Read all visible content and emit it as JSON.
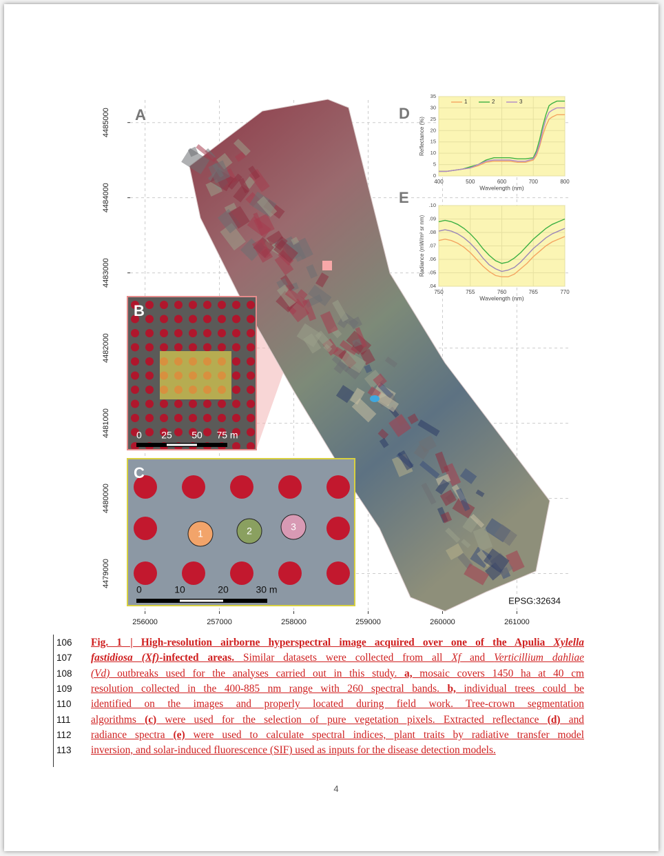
{
  "figure": {
    "panel_labels": [
      "A",
      "B",
      "C",
      "D",
      "E"
    ],
    "map": {
      "xlim": [
        255800,
        261700
      ],
      "ylim": [
        4478500,
        4485300
      ],
      "xticks": [
        256000,
        257000,
        258000,
        259000,
        260000,
        261000
      ],
      "yticks": [
        4479000,
        4480000,
        4481000,
        4482000,
        4483000,
        4484000,
        4485000
      ],
      "grid": true,
      "crs": "EPSG:32634"
    },
    "inset_b": {
      "scale_labels": [
        "0",
        "25",
        "50",
        "75 m"
      ]
    },
    "inset_c": {
      "scale_labels": [
        "0",
        "10",
        "20",
        "30 m"
      ],
      "crown_labels": [
        "1",
        "2",
        "3"
      ]
    }
  },
  "chart_data": [
    {
      "type": "line",
      "panel": "D",
      "xlabel": "Wavelength (nm)",
      "ylabel": "Reflectance (%)",
      "x": [
        400,
        425,
        450,
        475,
        500,
        525,
        550,
        575,
        600,
        625,
        650,
        675,
        700,
        710,
        720,
        730,
        740,
        750,
        760,
        775,
        800
      ],
      "series": [
        {
          "name": "1",
          "color": "#f4a460",
          "values": [
            2,
            2,
            2.5,
            3,
            3.5,
            4.5,
            6,
            6.5,
            6.5,
            6.5,
            6,
            6,
            7,
            9,
            13,
            18,
            22,
            25,
            26,
            27,
            27
          ]
        },
        {
          "name": "2",
          "color": "#3cb043",
          "values": [
            2,
            2,
            2.5,
            3,
            4,
            5,
            7,
            8,
            8,
            8,
            7.5,
            7.5,
            8,
            11,
            16,
            22,
            27,
            31,
            32,
            33,
            33
          ]
        },
        {
          "name": "3",
          "color": "#b088c8",
          "values": [
            2,
            2,
            2.5,
            3,
            3.5,
            5,
            6.5,
            7,
            7,
            7,
            6.5,
            6.5,
            7.5,
            10,
            14,
            20,
            25,
            28,
            29,
            30,
            30
          ]
        }
      ],
      "xlim": [
        400,
        800
      ],
      "ylim": [
        0,
        35
      ],
      "xticks": [
        400,
        500,
        600,
        700,
        800
      ],
      "yticks": [
        0,
        5,
        10,
        15,
        20,
        25,
        30,
        35
      ],
      "grid": true,
      "legend": "upper center",
      "background": "#fbf5b4"
    },
    {
      "type": "line",
      "panel": "E",
      "xlabel": "Wavelength (nm)",
      "ylabel": "Radiance (mW/m² sr nm)",
      "x": [
        750,
        751,
        752,
        753,
        754,
        755,
        756,
        757,
        758,
        759,
        760,
        761,
        762,
        763,
        764,
        765,
        766,
        767,
        768,
        769,
        770
      ],
      "series": [
        {
          "color": "#3cb043",
          "values": [
            0.088,
            0.089,
            0.088,
            0.086,
            0.083,
            0.079,
            0.074,
            0.068,
            0.063,
            0.059,
            0.057,
            0.058,
            0.061,
            0.065,
            0.07,
            0.075,
            0.079,
            0.083,
            0.086,
            0.088,
            0.09
          ]
        },
        {
          "color": "#9a86b8",
          "values": [
            0.081,
            0.082,
            0.081,
            0.079,
            0.076,
            0.072,
            0.067,
            0.061,
            0.056,
            0.053,
            0.051,
            0.052,
            0.054,
            0.058,
            0.063,
            0.068,
            0.072,
            0.076,
            0.079,
            0.081,
            0.083
          ]
        },
        {
          "color": "#f4a460",
          "values": [
            0.074,
            0.075,
            0.074,
            0.072,
            0.069,
            0.065,
            0.06,
            0.055,
            0.051,
            0.048,
            0.047,
            0.047,
            0.049,
            0.053,
            0.057,
            0.062,
            0.066,
            0.07,
            0.073,
            0.075,
            0.077
          ]
        }
      ],
      "xlim": [
        750,
        770
      ],
      "ylim": [
        0.04,
        0.1
      ],
      "xticks": [
        750,
        755,
        760,
        765,
        770
      ],
      "yticks": [
        {
          "value": 0.04,
          "label": ".04"
        },
        {
          "value": 0.05,
          "label": ".05"
        },
        {
          "value": 0.06,
          "label": ".06"
        },
        {
          "value": 0.07,
          "label": ".07"
        },
        {
          "value": 0.08,
          "label": ".08"
        },
        {
          "value": 0.09,
          "label": ".09"
        },
        {
          "value": 0.1,
          "label": ".10"
        }
      ],
      "grid": true,
      "background": "#fbf5b4"
    }
  ],
  "caption": {
    "line_numbers": [
      106,
      107,
      108,
      109,
      110,
      111,
      112,
      113
    ],
    "lines": [
      [
        {
          "text": "Fig. 1 | High-resolution airborne hyperspectral image acquired over one of the Apulia ",
          "style": "bold"
        },
        {
          "text": "Xylella",
          "style": "bold-italic"
        }
      ],
      [
        {
          "text": "fastidiosa (Xf)",
          "style": "bold-italic"
        },
        {
          "text": "-infected areas.",
          "style": "bold"
        },
        {
          "text": " Similar datasets were collected from all ",
          "style": "normal"
        },
        {
          "text": "Xf",
          "style": "italic"
        },
        {
          "text": " and ",
          "style": "normal"
        },
        {
          "text": "Verticillium dahliae",
          "style": "italic"
        }
      ],
      [
        {
          "text": "(Vd)",
          "style": "italic"
        },
        {
          "text": " outbreaks used for the analyses carried out in this study. ",
          "style": "normal"
        },
        {
          "text": "a,",
          "style": "bold"
        },
        {
          "text": " mosaic covers 1450 ha at 40 cm",
          "style": "normal"
        }
      ],
      [
        {
          "text": "resolution collected in the 400-885 nm range with 260 spectral bands. ",
          "style": "normal"
        },
        {
          "text": "b,",
          "style": "bold"
        },
        {
          "text": " individual trees could be",
          "style": "normal"
        }
      ],
      [
        {
          "text": "identified on the images and properly located during field work. Tree-crown segmentation",
          "style": "normal"
        }
      ],
      [
        {
          "text": "algorithms ",
          "style": "normal"
        },
        {
          "text": "(c)",
          "style": "bold"
        },
        {
          "text": " were used for the selection of pure vegetation pixels. Extracted reflectance ",
          "style": "normal"
        },
        {
          "text": "(d)",
          "style": "bold"
        },
        {
          "text": " and",
          "style": "normal"
        }
      ],
      [
        {
          "text": "radiance spectra ",
          "style": "normal"
        },
        {
          "text": "(e)",
          "style": "bold"
        },
        {
          "text": " were used to calculate spectral indices, plant traits by radiative transfer model",
          "style": "normal"
        }
      ],
      [
        {
          "text": "inversion, and solar-induced fluorescence (SIF) used as inputs for the disease detection models.",
          "style": "normal"
        }
      ]
    ]
  },
  "page_number": 4
}
